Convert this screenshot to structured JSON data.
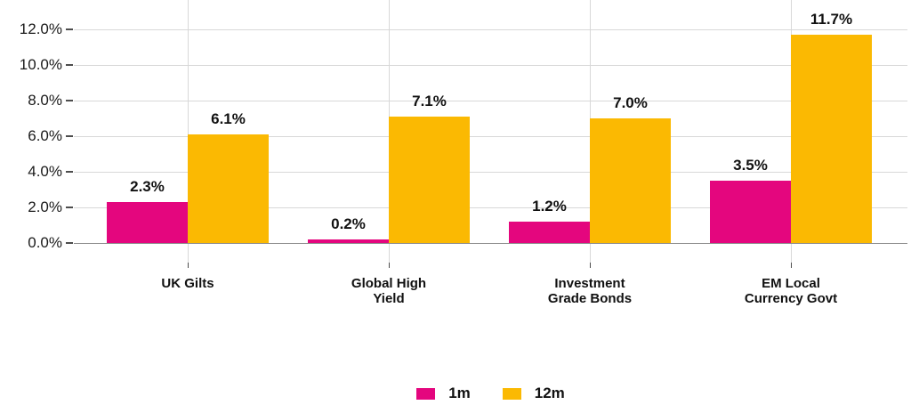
{
  "chart_data": {
    "type": "bar",
    "title": "",
    "xlabel": "",
    "ylabel": "",
    "categories": [
      "UK Gilts",
      "Global High\nYield",
      "Investment\nGrade Bonds",
      "EM Local\nCurrency Govt"
    ],
    "series": [
      {
        "name": "1m",
        "color": "#E4067E",
        "values": [
          2.3,
          0.2,
          1.2,
          3.5
        ],
        "labels": [
          "2.3%",
          "0.2%",
          "1.2%",
          "3.5%"
        ]
      },
      {
        "name": "12m",
        "color": "#FBB902",
        "values": [
          6.1,
          7.1,
          7.0,
          11.7
        ],
        "labels": [
          "6.1%",
          "7.1%",
          "7.0%",
          "11.7%"
        ]
      }
    ],
    "y_ticks": [
      "0.0%",
      "2.0%",
      "4.0%",
      "6.0%",
      "8.0%",
      "10.0%",
      "12.0%"
    ],
    "y_tick_values": [
      0,
      2,
      4,
      6,
      8,
      10,
      12
    ],
    "ylim": [
      0,
      13.65
    ],
    "grid": true,
    "legend_position": "bottom"
  },
  "colors": {
    "gridline": "#D8D8D8",
    "axis_line": "#8C8C8C",
    "tick_mark": "#4D4D4D",
    "text": "#111111"
  }
}
